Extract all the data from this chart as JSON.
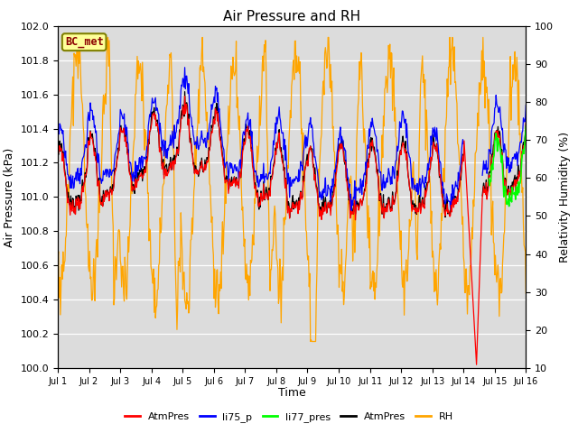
{
  "title": "Air Pressure and RH",
  "xlabel": "Time",
  "ylabel_left": "Air Pressure (kPa)",
  "ylabel_right": "Relativity Humidity (%)",
  "ylim_left": [
    100.0,
    102.0
  ],
  "ylim_right": [
    10,
    100
  ],
  "xlim": [
    0,
    15
  ],
  "xtick_labels": [
    "Jul 1",
    "Jul 2",
    "Jul 3",
    "Jul 4",
    "Jul 5",
    "Jul 6",
    "Jul 7",
    "Jul 8",
    "Jul 9",
    "Jul 10",
    "Jul 11",
    "Jul 12",
    "Jul 13",
    "Jul 14",
    "Jul 15",
    "Jul 16"
  ],
  "legend_entries": [
    "AtmPres",
    "li75_p",
    "li77_pres",
    "AtmPres",
    "RH"
  ],
  "legend_colors": [
    "red",
    "blue",
    "lime",
    "black",
    "orange"
  ],
  "box_label": "BC_met",
  "box_color": "#ffff99",
  "box_edge_color": "#808000",
  "background_color": "#dcdcdc",
  "grid_color": "white",
  "yticks_left": [
    100.0,
    100.2,
    100.4,
    100.6,
    100.8,
    101.0,
    101.2,
    101.4,
    101.6,
    101.8,
    102.0
  ],
  "yticks_right": [
    10,
    20,
    30,
    40,
    50,
    60,
    70,
    80,
    90,
    100
  ]
}
